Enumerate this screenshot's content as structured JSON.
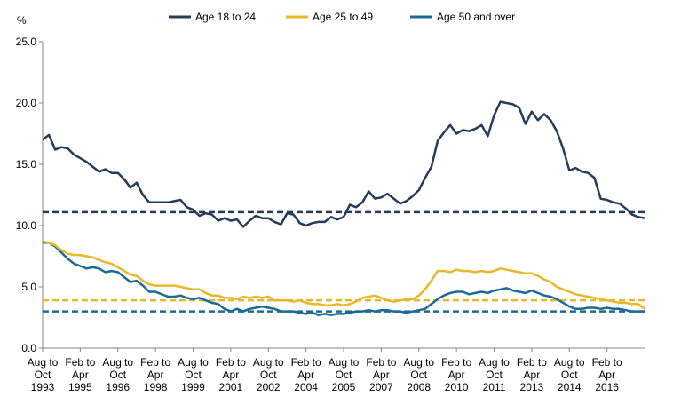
{
  "chart_data": {
    "type": "line",
    "title": "",
    "xlabel": "",
    "ylabel": "%",
    "ylim": [
      0,
      25
    ],
    "yticks": [
      "0.0",
      "5.0",
      "10.0",
      "15.0",
      "20.0",
      "25.0"
    ],
    "grid": false,
    "legend_position": "top",
    "x_tick_labels": [
      [
        "Aug to",
        "Oct",
        "1993"
      ],
      [
        "Feb to",
        "Apr",
        "1995"
      ],
      [
        "Aug to",
        "Oct",
        "1996"
      ],
      [
        "Feb to",
        "Apr",
        "1998"
      ],
      [
        "Aug to",
        "Oct",
        "1999"
      ],
      [
        "Feb to",
        "Apr",
        "2001"
      ],
      [
        "Aug to",
        "Oct",
        "2002"
      ],
      [
        "Feb to",
        "Apr",
        "2004"
      ],
      [
        "Aug to",
        "Oct",
        "2005"
      ],
      [
        "Feb to",
        "Apr",
        "2007"
      ],
      [
        "Aug to",
        "Oct",
        "2008"
      ],
      [
        "Feb to",
        "Apr",
        "2010"
      ],
      [
        "Aug to",
        "Oct",
        "2011"
      ],
      [
        "Feb to",
        "Apr",
        "2013"
      ],
      [
        "Aug to",
        "Oct",
        "2014"
      ],
      [
        "Feb to",
        "Apr",
        "2016"
      ]
    ],
    "series": [
      {
        "name": "Age 18 to 24",
        "color": "#253d5b",
        "dash_average": 11.1,
        "values": [
          17.0,
          17.4,
          16.2,
          16.4,
          16.3,
          15.8,
          15.5,
          15.2,
          14.8,
          14.4,
          14.6,
          14.3,
          14.3,
          13.8,
          13.1,
          13.5,
          12.5,
          11.9,
          11.9,
          11.9,
          11.9,
          12.0,
          12.1,
          11.5,
          11.3,
          10.8,
          11.0,
          10.9,
          10.4,
          10.6,
          10.4,
          10.5,
          9.9,
          10.4,
          10.8,
          10.6,
          10.6,
          10.3,
          10.1,
          11.0,
          10.9,
          10.2,
          10.0,
          10.2,
          10.3,
          10.3,
          10.7,
          10.5,
          10.7,
          11.7,
          11.5,
          11.9,
          12.8,
          12.2,
          12.3,
          12.6,
          12.2,
          11.8,
          12.0,
          12.4,
          12.9,
          13.9,
          14.8,
          16.9,
          17.6,
          18.2,
          17.5,
          17.8,
          17.7,
          17.9,
          18.2,
          17.3,
          19.0,
          20.1,
          20.0,
          19.9,
          19.6,
          18.3,
          19.3,
          18.6,
          19.1,
          18.6,
          17.7,
          16.3,
          14.5,
          14.7,
          14.4,
          14.3,
          13.9,
          12.2,
          12.1,
          11.9,
          11.8,
          11.4,
          10.9,
          10.7,
          10.6
        ]
      },
      {
        "name": "Age 25 to 49",
        "color": "#e7b92a",
        "dash_average": 3.9,
        "values": [
          8.7,
          8.6,
          8.4,
          8.0,
          7.7,
          7.6,
          7.6,
          7.5,
          7.4,
          7.2,
          7.0,
          6.9,
          6.6,
          6.3,
          6.0,
          5.9,
          5.5,
          5.2,
          5.1,
          5.1,
          5.1,
          5.1,
          5.0,
          4.9,
          4.8,
          4.8,
          4.5,
          4.3,
          4.3,
          4.1,
          4.1,
          4.0,
          4.2,
          4.1,
          4.2,
          4.1,
          4.2,
          3.9,
          3.9,
          3.9,
          3.8,
          3.9,
          3.7,
          3.6,
          3.6,
          3.5,
          3.5,
          3.6,
          3.5,
          3.6,
          3.8,
          4.1,
          4.2,
          4.3,
          4.1,
          3.9,
          3.8,
          3.9,
          4.0,
          4.0,
          4.3,
          4.8,
          5.5,
          6.3,
          6.3,
          6.2,
          6.4,
          6.3,
          6.3,
          6.2,
          6.3,
          6.2,
          6.3,
          6.5,
          6.4,
          6.3,
          6.2,
          6.1,
          6.1,
          5.9,
          5.6,
          5.4,
          5.0,
          4.8,
          4.6,
          4.4,
          4.3,
          4.2,
          4.1,
          4.0,
          3.9,
          3.8,
          3.7,
          3.7,
          3.6,
          3.6,
          3.2
        ]
      },
      {
        "name": "Age 50 and over",
        "color": "#1c6a96",
        "dash_average": 3.0,
        "values": [
          8.6,
          8.6,
          8.3,
          7.8,
          7.3,
          6.9,
          6.7,
          6.5,
          6.6,
          6.5,
          6.2,
          6.3,
          6.2,
          5.8,
          5.4,
          5.5,
          5.1,
          4.6,
          4.6,
          4.4,
          4.2,
          4.2,
          4.3,
          4.1,
          4.0,
          4.1,
          3.9,
          3.7,
          3.6,
          3.2,
          3.0,
          3.2,
          3.0,
          3.2,
          3.3,
          3.4,
          3.3,
          3.2,
          3.0,
          3.0,
          3.0,
          2.9,
          2.8,
          2.9,
          2.7,
          2.8,
          2.7,
          2.8,
          2.8,
          2.9,
          3.0,
          3.0,
          3.1,
          3.0,
          3.1,
          3.1,
          3.0,
          3.0,
          2.9,
          3.0,
          3.1,
          3.2,
          3.6,
          4.0,
          4.3,
          4.5,
          4.6,
          4.6,
          4.4,
          4.5,
          4.6,
          4.5,
          4.7,
          4.8,
          4.9,
          4.7,
          4.6,
          4.5,
          4.7,
          4.5,
          4.3,
          4.2,
          4.0,
          3.7,
          3.4,
          3.2,
          3.2,
          3.3,
          3.3,
          3.2,
          3.3,
          3.2,
          3.2,
          3.1,
          3.0,
          3.0,
          3.0
        ]
      }
    ]
  }
}
